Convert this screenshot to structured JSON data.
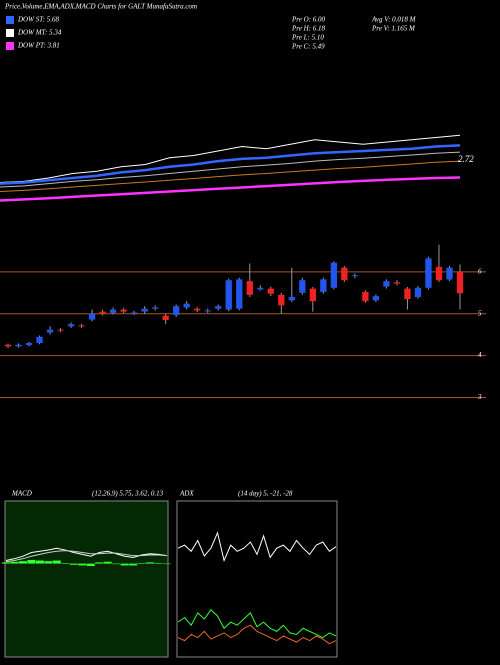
{
  "header": {
    "title": "Price,Volume,EMA,ADX,MACD Charts for GALT MunafaSutra.com",
    "legend": [
      {
        "label": "DOW ST: 5.68",
        "color": "#3366ff"
      },
      {
        "label": "DOW MT: 5.34",
        "color": "#ffffff"
      },
      {
        "label": "DOW PT: 3.81",
        "color": "#ff33ff"
      }
    ],
    "stats": [
      "Pre  O: 6.00",
      "Pre  H: 6.18",
      "Pre  L: 5.10",
      "Pre  C: 5.49"
    ],
    "volume": [
      "Avg V: 0.018  M",
      "Pre   V: 1.165 M"
    ]
  },
  "chart_data": [
    {
      "type": "line",
      "annotation": "2.72",
      "ylim": [
        1.5,
        7.5
      ],
      "series": [
        {
          "name": "Price",
          "color": "#ffffff",
          "values": [
            2.5,
            2.55,
            2.7,
            2.9,
            3.0,
            3.2,
            3.3,
            3.6,
            3.7,
            3.9,
            4.1,
            4.0,
            4.2,
            4.4,
            4.3,
            4.2,
            4.3,
            4.4,
            4.5,
            4.6
          ]
        },
        {
          "name": "EMA",
          "color": "#3366ff",
          "values": [
            2.45,
            2.5,
            2.6,
            2.7,
            2.8,
            2.95,
            3.05,
            3.2,
            3.3,
            3.45,
            3.55,
            3.6,
            3.7,
            3.8,
            3.85,
            3.9,
            3.95,
            4.0,
            4.1,
            4.15
          ]
        },
        {
          "name": "EMA MT",
          "color": "#bbbbbb",
          "values": [
            2.3,
            2.35,
            2.45,
            2.55,
            2.62,
            2.72,
            2.8,
            2.9,
            3.0,
            3.1,
            3.2,
            3.27,
            3.35,
            3.45,
            3.52,
            3.58,
            3.65,
            3.72,
            3.8,
            3.85
          ]
        },
        {
          "name": "EMA LT",
          "color": "#cc7722",
          "values": [
            2.1,
            2.15,
            2.22,
            2.3,
            2.37,
            2.45,
            2.52,
            2.6,
            2.68,
            2.76,
            2.84,
            2.9,
            2.98,
            3.05,
            3.12,
            3.18,
            3.25,
            3.32,
            3.4,
            3.45
          ]
        },
        {
          "name": "EMA PT",
          "color": "#ff33ff",
          "values": [
            1.7,
            1.75,
            1.8,
            1.86,
            1.92,
            1.98,
            2.04,
            2.1,
            2.16,
            2.22,
            2.28,
            2.34,
            2.4,
            2.46,
            2.52,
            2.57,
            2.62,
            2.66,
            2.7,
            2.72
          ]
        }
      ]
    },
    {
      "type": "candlestick",
      "ylim": [
        2.7,
        7.0
      ],
      "yticks": [
        3,
        4,
        5,
        6
      ],
      "up_color": "#2255ee",
      "down_color": "#ee2222",
      "grid_color": "#aa5522",
      "open": [
        4.26,
        4.22,
        4.25,
        4.3,
        4.55,
        4.62,
        4.7,
        4.72,
        4.86,
        5.05,
        5.02,
        5.1,
        5.0,
        5.05,
        5.12,
        4.95,
        4.97,
        5.15,
        5.12,
        5.06,
        5.12,
        5.1,
        5.12,
        5.78,
        5.58,
        5.6,
        5.45,
        5.32,
        5.5,
        5.6,
        5.52,
        5.62,
        6.1,
        5.9,
        5.52,
        5.32,
        5.65,
        5.75,
        5.6,
        5.4,
        5.62,
        6.12,
        5.82,
        6.0
      ],
      "high": [
        4.29,
        4.29,
        4.33,
        4.48,
        4.7,
        4.66,
        4.79,
        4.76,
        5.1,
        5.1,
        5.15,
        5.14,
        5.07,
        5.18,
        5.2,
        5.0,
        5.22,
        5.3,
        5.16,
        5.12,
        5.22,
        5.84,
        5.86,
        6.2,
        5.68,
        5.65,
        5.5,
        6.1,
        5.86,
        5.64,
        5.86,
        6.25,
        6.14,
        5.96,
        5.56,
        5.46,
        5.82,
        5.8,
        5.64,
        5.66,
        6.36,
        6.65,
        6.14,
        6.18
      ],
      "low": [
        4.18,
        4.19,
        4.22,
        4.27,
        4.5,
        4.56,
        4.66,
        4.66,
        4.82,
        4.96,
        4.98,
        5.01,
        4.97,
        5.0,
        5.08,
        4.75,
        4.92,
        5.1,
        5.04,
        5.02,
        5.08,
        5.06,
        5.08,
        5.4,
        5.55,
        5.42,
        5.0,
        5.28,
        5.45,
        5.05,
        5.48,
        5.58,
        5.76,
        5.85,
        5.26,
        5.28,
        5.6,
        5.68,
        5.1,
        5.36,
        5.58,
        5.76,
        5.78,
        5.1
      ],
      "close": [
        4.22,
        4.26,
        4.3,
        4.45,
        4.62,
        4.6,
        4.75,
        4.7,
        5.0,
        5.0,
        5.1,
        5.05,
        5.03,
        5.12,
        5.15,
        4.85,
        5.18,
        5.24,
        5.08,
        5.08,
        5.18,
        5.8,
        5.82,
        5.45,
        5.62,
        5.48,
        5.2,
        5.4,
        5.8,
        5.3,
        5.82,
        6.22,
        5.8,
        5.92,
        5.3,
        5.42,
        5.78,
        5.72,
        5.35,
        5.62,
        6.32,
        5.8,
        6.1,
        5.49
      ]
    },
    {
      "type": "macd",
      "title": "MACD",
      "subtitle": "(12,26,9) 5.75, 3.62, 0.13",
      "ylim": [
        -1.5,
        1.0
      ],
      "series": [
        {
          "name": "MACD",
          "color": "#ffffff",
          "values": [
            0.05,
            0.08,
            0.12,
            0.18,
            0.2,
            0.22,
            0.25,
            0.22,
            0.18,
            0.15,
            0.12,
            0.18,
            0.2,
            0.16,
            0.12,
            0.1,
            0.14,
            0.16,
            0.15,
            0.13
          ]
        },
        {
          "name": "Signal",
          "color": "#cccccc",
          "values": [
            0.03,
            0.05,
            0.08,
            0.12,
            0.15,
            0.18,
            0.2,
            0.21,
            0.2,
            0.18,
            0.16,
            0.16,
            0.17,
            0.17,
            0.15,
            0.13,
            0.13,
            0.14,
            0.14,
            0.13
          ]
        },
        {
          "name": "Histogram",
          "color": "#33ff33",
          "values": [
            0.02,
            0.03,
            0.04,
            0.06,
            0.05,
            0.04,
            0.05,
            0.01,
            -0.02,
            -0.03,
            -0.04,
            0.02,
            0.03,
            -0.01,
            -0.03,
            -0.03,
            0.01,
            0.02,
            0.01,
            0.0
          ]
        }
      ]
    },
    {
      "type": "adx",
      "title": "ADX",
      "subtitle": "(14 day) 5, -21, -28",
      "ylim": [
        0,
        100
      ],
      "series": [
        {
          "name": "ADX",
          "color": "#ffffff",
          "values": [
            70,
            72,
            68,
            75,
            65,
            70,
            80,
            62,
            72,
            68,
            70,
            74,
            66,
            78,
            64,
            70,
            72,
            68,
            75,
            70,
            66,
            72,
            74,
            68,
            71
          ]
        },
        {
          "name": "+DI",
          "color": "#33ff33",
          "values": [
            22,
            25,
            20,
            28,
            24,
            30,
            26,
            18,
            22,
            20,
            24,
            28,
            19,
            22,
            18,
            16,
            20,
            15,
            14,
            18,
            16,
            14,
            12,
            15,
            13
          ]
        },
        {
          "name": "-DI",
          "color": "#ee6622",
          "values": [
            12,
            10,
            14,
            12,
            16,
            11,
            13,
            15,
            12,
            14,
            18,
            20,
            16,
            14,
            12,
            10,
            13,
            11,
            9,
            12,
            10,
            13,
            11,
            8,
            10
          ]
        }
      ]
    }
  ]
}
